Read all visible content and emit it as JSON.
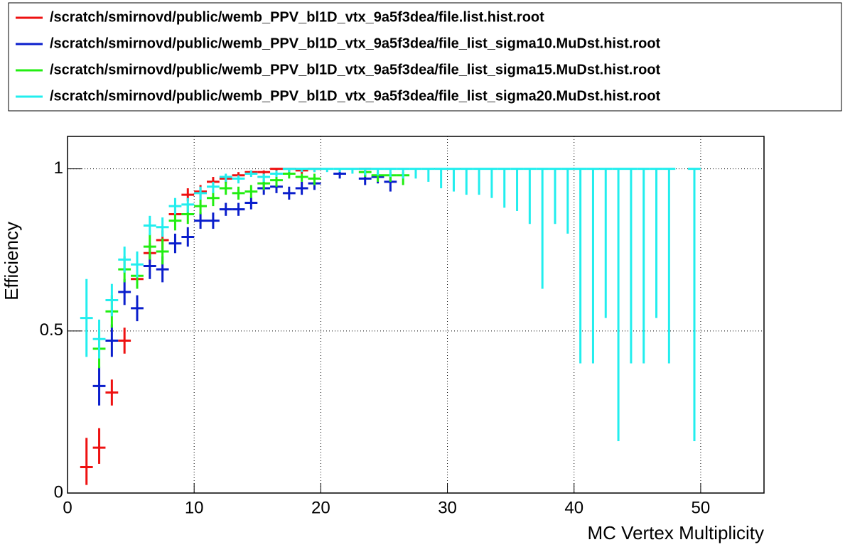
{
  "chart_data": {
    "type": "errorbar",
    "x_label": "MC Vertex Multiplicity",
    "y_label": "Efficiency",
    "xlim": [
      0,
      55
    ],
    "ylim": [
      0,
      1.1
    ],
    "xticks": [
      0,
      10,
      20,
      30,
      40,
      50
    ],
    "yticks": [
      0,
      0.5,
      1
    ],
    "grid": true,
    "xerr": 0.5,
    "series": [
      {
        "name": "/scratch/smirnovd/public/wemb_PPV_bl1D_vtx_9a5f3dea/file.list.hist.root",
        "color": "#ee1111",
        "x": [
          1.5,
          2.5,
          3.5,
          4.5,
          5.5,
          6.5,
          7.5,
          8.5,
          9.5,
          10.5,
          11.5,
          12.5,
          13.5,
          14.5,
          15.5,
          16.5,
          17.5,
          18.5,
          19.5,
          23.5
        ],
        "values": [
          0.08,
          0.14,
          0.31,
          0.47,
          0.66,
          0.74,
          0.78,
          0.86,
          0.92,
          0.93,
          0.96,
          0.97,
          0.98,
          0.99,
          0.99,
          1,
          1,
          0.995,
          1,
          1
        ],
        "err_low": [
          0.055,
          0.05,
          0.04,
          0.04,
          0.03,
          0.03,
          0.03,
          0.02,
          0.02,
          0.02,
          0.015,
          0.015,
          0.01,
          0.01,
          0.01,
          0.01,
          0.01,
          0.01,
          0.01,
          0.01
        ],
        "err_high": [
          0.09,
          0.06,
          0.04,
          0.04,
          0.03,
          0.03,
          0.03,
          0.02,
          0.02,
          0.02,
          0.015,
          0.01,
          0.01,
          0.005,
          0.005,
          0,
          0,
          0.005,
          0,
          0
        ]
      },
      {
        "name": "/scratch/smirnovd/public/wemb_PPV_bl1D_vtx_9a5f3dea/file_list_sigma10.MuDst.hist.root",
        "color": "#0a1ecc",
        "x": [
          2.5,
          3.5,
          4.5,
          5.5,
          6.5,
          7.5,
          8.5,
          9.5,
          10.5,
          11.5,
          12.5,
          13.5,
          14.5,
          15.5,
          16.5,
          17.5,
          18.5,
          19.5,
          21.5,
          23.5,
          24.5,
          25.5
        ],
        "values": [
          0.33,
          0.47,
          0.62,
          0.57,
          0.7,
          0.69,
          0.77,
          0.79,
          0.84,
          0.84,
          0.875,
          0.875,
          0.895,
          0.94,
          0.945,
          0.925,
          0.94,
          0.955,
          0.985,
          0.97,
          0.975,
          0.96
        ],
        "err_low": [
          0.06,
          0.05,
          0.04,
          0.04,
          0.04,
          0.04,
          0.03,
          0.03,
          0.025,
          0.025,
          0.02,
          0.02,
          0.02,
          0.02,
          0.02,
          0.02,
          0.02,
          0.02,
          0.015,
          0.02,
          0.02,
          0.03
        ],
        "err_high": [
          0.06,
          0.05,
          0.04,
          0.04,
          0.04,
          0.04,
          0.03,
          0.03,
          0.025,
          0.025,
          0.02,
          0.02,
          0.02,
          0.02,
          0.02,
          0.02,
          0.02,
          0.02,
          0.01,
          0.015,
          0.015,
          0.02
        ]
      },
      {
        "name": "/scratch/smirnovd/public/wemb_PPV_bl1D_vtx_9a5f3dea/file_list_sigma15.MuDst.hist.root",
        "color": "#22ee11",
        "x": [
          2.5,
          3.5,
          4.5,
          5.5,
          6.5,
          7.5,
          8.5,
          9.5,
          10.5,
          11.5,
          12.5,
          13.5,
          14.5,
          15.5,
          16.5,
          17.5,
          18.5,
          19.5,
          23.5,
          24.5,
          25.5,
          26.5
        ],
        "values": [
          0.445,
          0.56,
          0.69,
          0.67,
          0.76,
          0.745,
          0.84,
          0.86,
          0.885,
          0.91,
          0.94,
          0.925,
          0.93,
          0.955,
          0.965,
          0.985,
          0.975,
          0.97,
          0.99,
          0.98,
          0.98,
          0.98
        ],
        "err_low": [
          0.06,
          0.05,
          0.04,
          0.04,
          0.04,
          0.04,
          0.03,
          0.03,
          0.025,
          0.025,
          0.02,
          0.02,
          0.02,
          0.02,
          0.02,
          0.015,
          0.015,
          0.02,
          0.015,
          0.02,
          0.02,
          0.03
        ],
        "err_high": [
          0.06,
          0.05,
          0.04,
          0.04,
          0.04,
          0.04,
          0.03,
          0.03,
          0.025,
          0.02,
          0.02,
          0.02,
          0.02,
          0.015,
          0.015,
          0.01,
          0.01,
          0.015,
          0.005,
          0.01,
          0.01,
          0.01
        ]
      },
      {
        "name": "/scratch/smirnovd/public/wemb_PPV_bl1D_vtx_9a5f3dea/file_list_sigma20.MuDst.hist.root",
        "color": "#22eeee",
        "x": [
          1.5,
          2.5,
          3.5,
          4.5,
          5.5,
          6.5,
          7.5,
          8.5,
          9.5,
          10.5,
          11.5,
          12.5,
          13.5,
          14.5,
          15.5,
          16.5,
          17.5,
          18.5,
          19.5,
          20.5,
          21.5,
          22.5,
          23.5,
          24.5,
          25.5,
          26.5,
          27.5,
          28.5,
          29.5,
          30.5,
          31.5,
          32.5,
          33.5,
          34.5,
          35.5,
          36.5,
          37.5,
          38.5,
          39.5,
          40.5,
          41.5,
          42.5,
          43.5,
          44.5,
          45.5,
          46.5,
          47.5,
          49.5
        ],
        "values": [
          0.54,
          0.475,
          0.595,
          0.72,
          0.705,
          0.825,
          0.82,
          0.885,
          0.89,
          0.925,
          0.945,
          0.975,
          0.97,
          0.985,
          0.975,
          0.985,
          1,
          1,
          1,
          1,
          1,
          1,
          1,
          1,
          1,
          1,
          1,
          1,
          1,
          1,
          1,
          1,
          1,
          1,
          1,
          1,
          1,
          1,
          1,
          1,
          1,
          1,
          1,
          1,
          1,
          1,
          1,
          1
        ],
        "err_low": [
          0.12,
          0.06,
          0.05,
          0.04,
          0.04,
          0.03,
          0.03,
          0.025,
          0.025,
          0.02,
          0.02,
          0.015,
          0.015,
          0.01,
          0.015,
          0.01,
          0.01,
          0.01,
          0.01,
          0.01,
          0.01,
          0.015,
          0.02,
          0.02,
          0.025,
          0.03,
          0.03,
          0.04,
          0.06,
          0.07,
          0.08,
          0.08,
          0.09,
          0.12,
          0.13,
          0.17,
          0.37,
          0.17,
          0.2,
          0.6,
          0.6,
          0.46,
          0.84,
          0.6,
          0.6,
          0.46,
          0.6,
          0.84
        ],
        "err_high": [
          0.12,
          0.06,
          0.05,
          0.04,
          0.04,
          0.03,
          0.03,
          0.025,
          0.02,
          0.02,
          0.015,
          0.01,
          0.01,
          0.01,
          0.01,
          0.01,
          0,
          0,
          0,
          0,
          0,
          0,
          0,
          0,
          0,
          0,
          0,
          0,
          0,
          0,
          0,
          0,
          0,
          0,
          0,
          0,
          0,
          0,
          0,
          0,
          0,
          0,
          0,
          0,
          0,
          0,
          0,
          0
        ]
      }
    ]
  }
}
